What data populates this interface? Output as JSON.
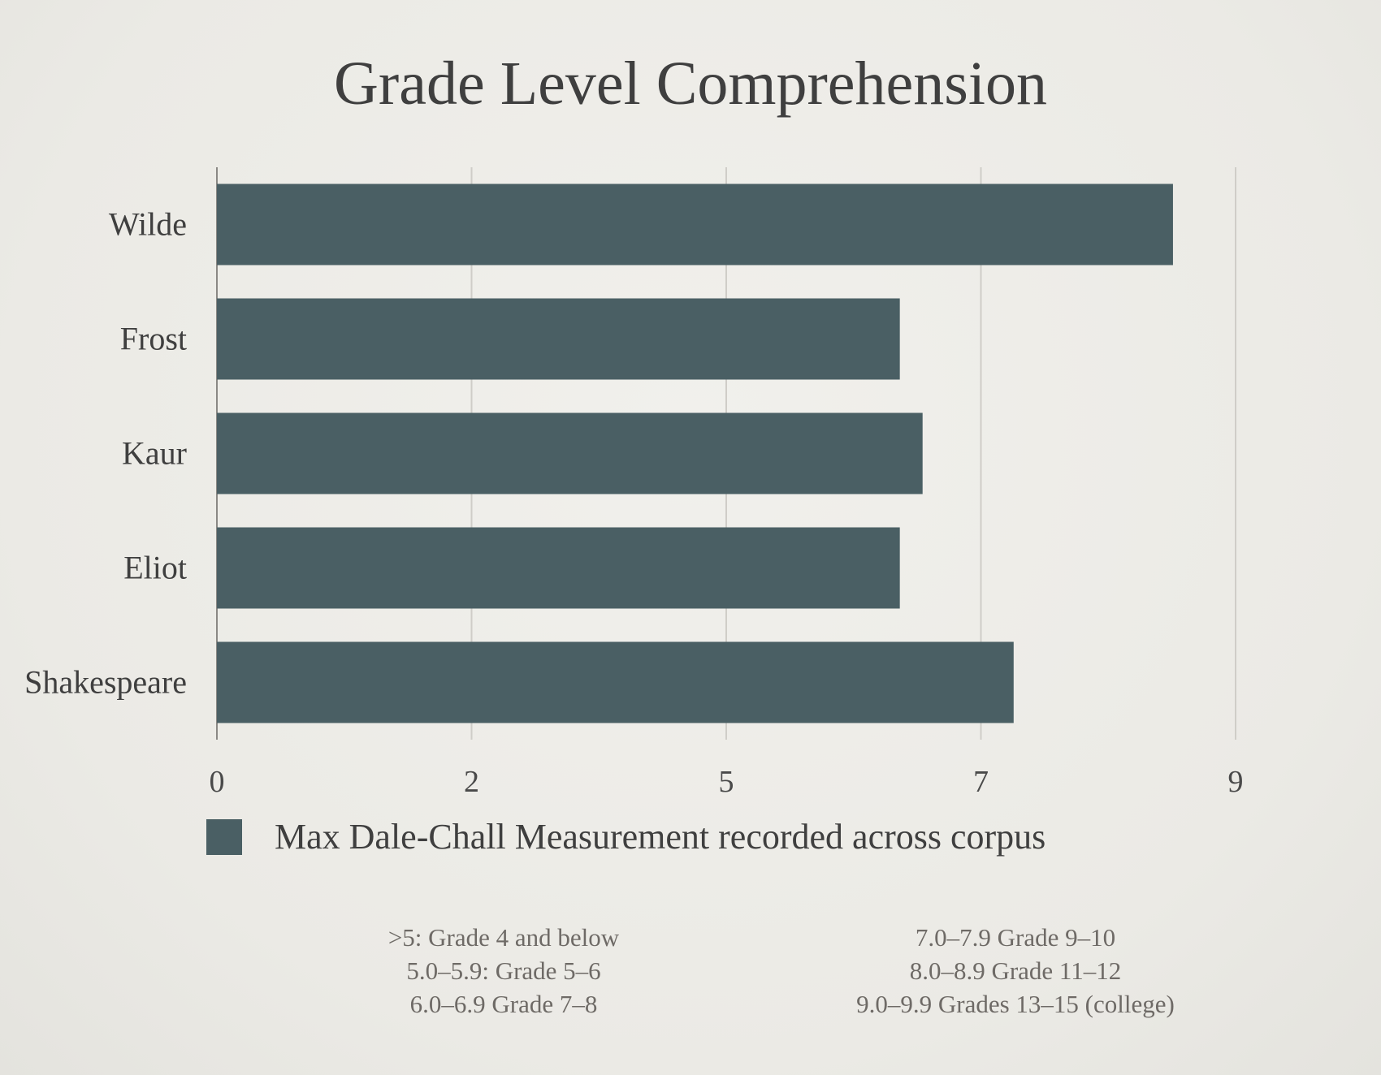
{
  "chart_data": {
    "type": "bar",
    "orientation": "horizontal",
    "title": "Grade Level Comprehension",
    "categories": [
      "Wilde",
      "Frost",
      "Kaur",
      "Eliot",
      "Shakespeare"
    ],
    "series": [
      {
        "name": "Max Dale-Chall Measurement recorded across corpus",
        "values": [
          8.4,
          6.0,
          6.2,
          6.0,
          7.0
        ],
        "color": "#4a5f64"
      }
    ],
    "xlim": [
      0,
      8.95
    ],
    "x_ticks": [
      0,
      2,
      5,
      7,
      9
    ],
    "grid": true,
    "legend_position": "bottom-left"
  },
  "notes": {
    "left": [
      ">5: Grade 4 and below",
      "5.0–5.9: Grade 5–6",
      "6.0–6.9 Grade 7–8"
    ],
    "right": [
      "7.0–7.9 Grade 9–10",
      "8.0–8.9 Grade 11–12",
      "9.0–9.9 Grades 13–15 (college)"
    ]
  }
}
